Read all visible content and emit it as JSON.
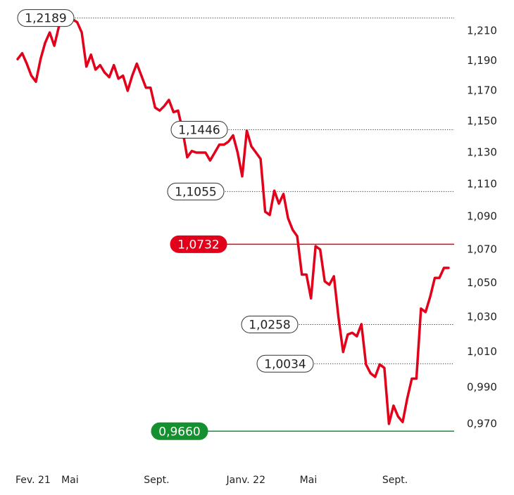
{
  "chart_data": {
    "type": "line",
    "log_scale": true,
    "ylim": [
      0.96,
      1.225
    ],
    "yticks": [
      {
        "value": 1.21,
        "label": "1,210"
      },
      {
        "value": 1.19,
        "label": "1,190"
      },
      {
        "value": 1.17,
        "label": "1,170"
      },
      {
        "value": 1.15,
        "label": "1,150"
      },
      {
        "value": 1.13,
        "label": "1,130"
      },
      {
        "value": 1.11,
        "label": "1,110"
      },
      {
        "value": 1.09,
        "label": "1,090"
      },
      {
        "value": 1.07,
        "label": "1,070"
      },
      {
        "value": 1.05,
        "label": "1,050"
      },
      {
        "value": 1.03,
        "label": "1,030"
      },
      {
        "value": 1.01,
        "label": "1,010"
      },
      {
        "value": 0.99,
        "label": "0,990"
      },
      {
        "value": 0.97,
        "label": "0,970"
      }
    ],
    "categories": [
      "Fev. 21",
      null,
      null,
      null,
      null,
      null,
      null,
      null,
      null,
      null,
      "Mai",
      null,
      null,
      null,
      null,
      null,
      null,
      null,
      null,
      null,
      null,
      null,
      null,
      null,
      null,
      null,
      null,
      null,
      "Sept.",
      null,
      null,
      null,
      null,
      null,
      null,
      null,
      null,
      null,
      null,
      null,
      null,
      null,
      null,
      null,
      null,
      null,
      "Janv. 22",
      null,
      null,
      null,
      null,
      null,
      null,
      null,
      null,
      null,
      null,
      null,
      null,
      null,
      null,
      null,
      "Mai",
      null,
      null,
      null,
      null,
      null,
      null,
      null,
      null,
      null,
      null,
      null,
      null,
      null,
      null,
      null,
      null,
      null,
      "Sept.",
      null,
      null,
      null,
      null,
      null,
      null,
      null,
      null,
      null,
      null,
      null,
      null,
      null,
      null
    ],
    "series": [
      {
        "color": "#e2001a",
        "values": [
          1.191,
          1.195,
          1.188,
          1.18,
          1.176,
          1.191,
          1.202,
          1.209,
          1.2,
          1.213,
          1.219,
          1.218,
          1.218,
          1.216,
          1.209,
          1.186,
          1.194,
          1.184,
          1.187,
          1.182,
          1.179,
          1.187,
          1.178,
          1.18,
          1.17,
          1.18,
          1.188,
          1.18,
          1.172,
          1.172,
          1.159,
          1.157,
          1.16,
          1.164,
          1.156,
          1.157,
          1.144,
          1.127,
          1.131,
          1.13,
          1.13,
          1.13,
          1.125,
          1.13,
          1.135,
          1.135,
          1.137,
          1.141,
          1.13,
          1.115,
          1.144,
          1.134,
          1.13,
          1.126,
          1.093,
          1.091,
          1.106,
          1.098,
          1.104,
          1.089,
          1.082,
          1.078,
          1.055,
          1.055,
          1.041,
          1.072,
          1.07,
          1.051,
          1.049,
          1.054,
          1.03,
          1.01,
          1.02,
          1.021,
          1.019,
          1.026,
          1.003,
          0.998,
          0.996,
          1.003,
          1.001,
          0.97,
          0.98,
          0.974,
          0.971,
          0.984,
          0.995,
          0.995,
          1.035,
          1.033,
          1.042,
          1.053,
          1.053,
          1.059,
          1.059
        ]
      }
    ],
    "annotations": [
      {
        "value": 1.2189,
        "label": "1,2189"
      },
      {
        "value": 1.1446,
        "label": "1,1446"
      },
      {
        "value": 1.1055,
        "label": "1,1055"
      },
      {
        "value": 1.0732,
        "label": "1,0732",
        "color": "#e2001a"
      },
      {
        "value": 1.0258,
        "label": "1,0258"
      },
      {
        "value": 1.0034,
        "label": "1,0034"
      },
      {
        "value": 0.966,
        "label": "0,9660",
        "color": "#15902f"
      }
    ]
  }
}
